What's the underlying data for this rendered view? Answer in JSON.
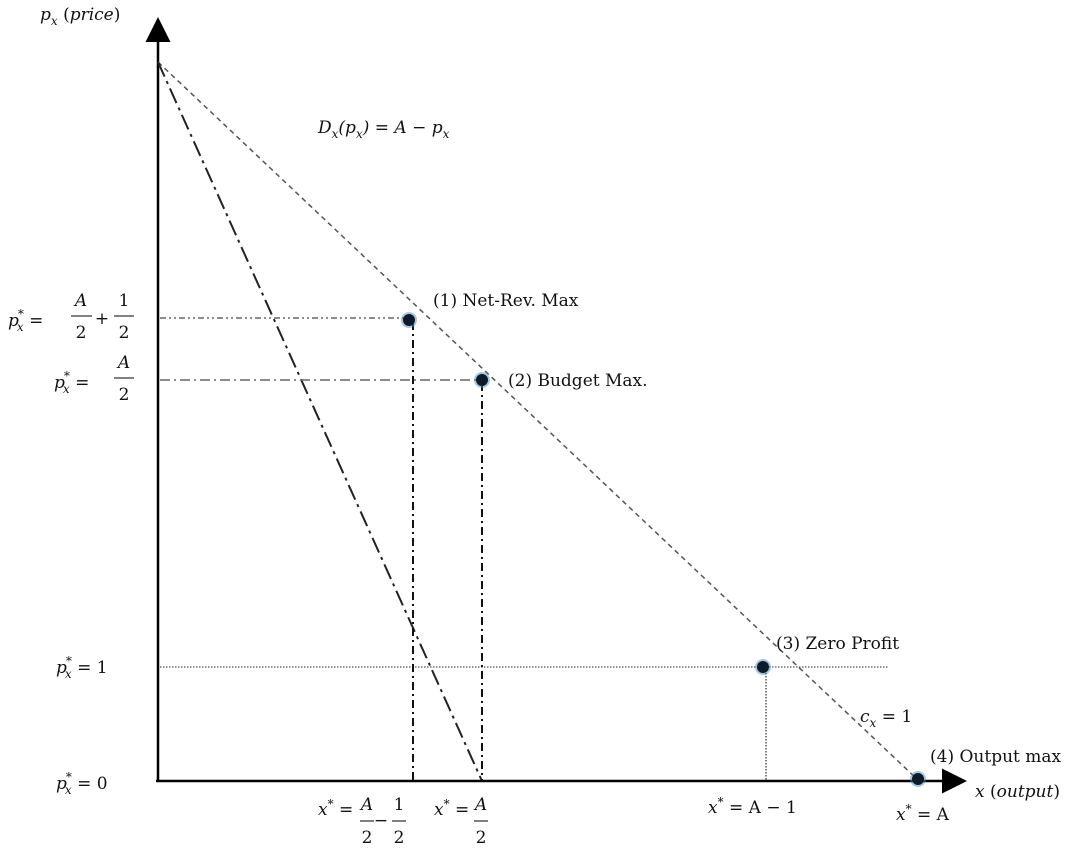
{
  "axes": {
    "y_var": "p",
    "y_sub": "x",
    "y_paren_open": " (",
    "y_word": "price",
    "y_paren_close": ")",
    "x_var": "x",
    "x_paren_open": " (",
    "x_word": "output",
    "x_paren_close": ")"
  },
  "demand": {
    "D": "D",
    "sub": "x",
    "open": "(p",
    "sub2": "x",
    "rest": ") = A − p",
    "sub3": "x"
  },
  "points": [
    {
      "label": "(1) Net-Rev. Max"
    },
    {
      "label": "(2) Budget Max."
    },
    {
      "label": "(3) Zero Profit"
    },
    {
      "label": "(4) Output max"
    }
  ],
  "cost": {
    "c": "c",
    "sub": "x",
    "rest": " = 1"
  },
  "y_labels": {
    "p": "p",
    "star": "*",
    "sub": "x",
    "eq": " =",
    "l1": {
      "num1": "A",
      "den1": "2",
      "op": "+",
      "num2": "1",
      "den2": "2"
    },
    "l2": {
      "num": "A",
      "den": "2"
    },
    "l3": " = 1",
    "l4": " = 0"
  },
  "x_labels": {
    "x": "x",
    "star": "*",
    "eq": " =",
    "l1": {
      "num1": "A",
      "den1": "2",
      "op": "−",
      "num2": "1",
      "den2": "2"
    },
    "l2": {
      "num": "A",
      "den": "2"
    },
    "l3": " = A − 1",
    "l4": " = A"
  },
  "colors": {
    "point": "#0d1a2a",
    "point_glow": "#4a8fc4"
  }
}
